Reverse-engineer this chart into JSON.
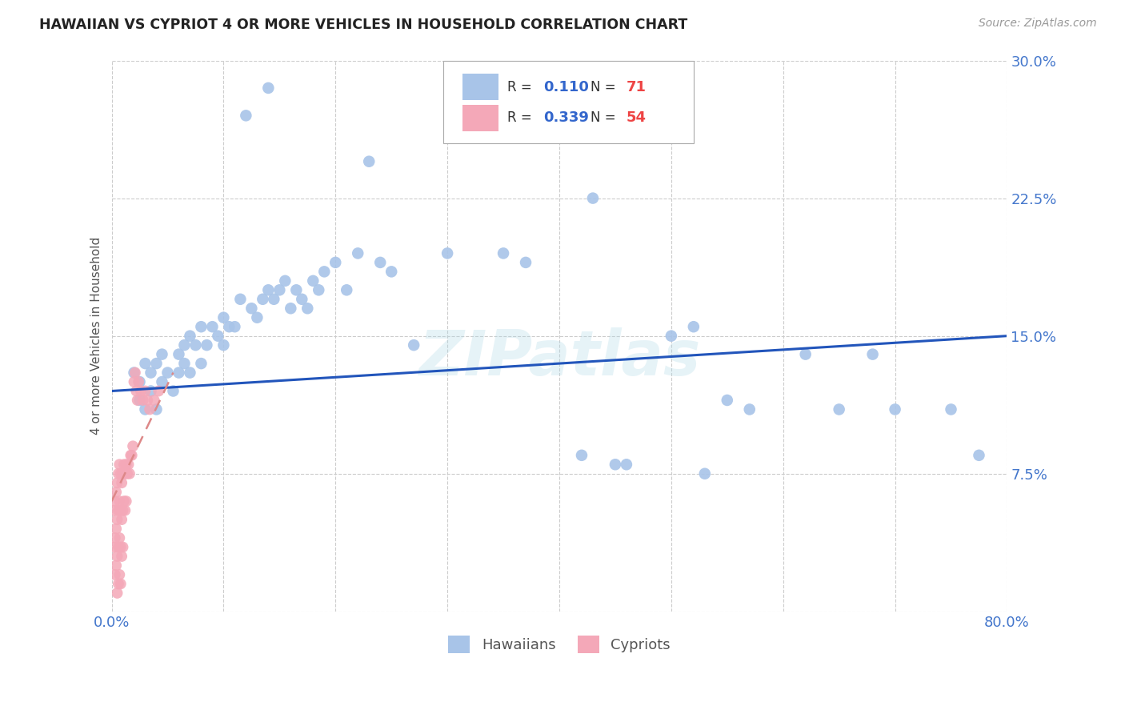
{
  "title": "HAWAIIAN VS CYPRIOT 4 OR MORE VEHICLES IN HOUSEHOLD CORRELATION CHART",
  "source": "Source: ZipAtlas.com",
  "ylabel": "4 or more Vehicles in Household",
  "xlim": [
    0.0,
    0.8
  ],
  "ylim": [
    0.0,
    0.3
  ],
  "hawaiian_color": "#a8c4e8",
  "cypriot_color": "#f4a8b8",
  "trendline_hawaiian_color": "#2255bb",
  "trendline_cypriot_color": "#dd8888",
  "watermark": "ZIPatlas",
  "legend_R1": "0.110",
  "legend_N1": "71",
  "legend_R2": "0.339",
  "legend_N2": "54",
  "hawaiian_x": [
    0.02,
    0.025,
    0.025,
    0.03,
    0.03,
    0.035,
    0.035,
    0.04,
    0.04,
    0.045,
    0.045,
    0.05,
    0.055,
    0.06,
    0.06,
    0.065,
    0.065,
    0.07,
    0.07,
    0.075,
    0.08,
    0.08,
    0.085,
    0.09,
    0.095,
    0.1,
    0.1,
    0.105,
    0.11,
    0.115,
    0.12,
    0.125,
    0.13,
    0.135,
    0.14,
    0.14,
    0.145,
    0.15,
    0.155,
    0.16,
    0.165,
    0.17,
    0.175,
    0.18,
    0.185,
    0.19,
    0.2,
    0.21,
    0.22,
    0.23,
    0.24,
    0.25,
    0.27,
    0.3,
    0.35,
    0.37,
    0.42,
    0.43,
    0.45,
    0.46,
    0.5,
    0.52,
    0.53,
    0.55,
    0.57,
    0.62,
    0.65,
    0.68,
    0.7,
    0.75,
    0.775
  ],
  "hawaiian_y": [
    0.13,
    0.125,
    0.115,
    0.135,
    0.11,
    0.13,
    0.12,
    0.135,
    0.11,
    0.14,
    0.125,
    0.13,
    0.12,
    0.14,
    0.13,
    0.145,
    0.135,
    0.15,
    0.13,
    0.145,
    0.155,
    0.135,
    0.145,
    0.155,
    0.15,
    0.16,
    0.145,
    0.155,
    0.155,
    0.17,
    0.27,
    0.165,
    0.16,
    0.17,
    0.175,
    0.285,
    0.17,
    0.175,
    0.18,
    0.165,
    0.175,
    0.17,
    0.165,
    0.18,
    0.175,
    0.185,
    0.19,
    0.175,
    0.195,
    0.245,
    0.19,
    0.185,
    0.145,
    0.195,
    0.195,
    0.19,
    0.085,
    0.225,
    0.08,
    0.08,
    0.15,
    0.155,
    0.075,
    0.115,
    0.11,
    0.14,
    0.11,
    0.14,
    0.11,
    0.11,
    0.085
  ],
  "cypriot_x": [
    0.002,
    0.002,
    0.003,
    0.003,
    0.003,
    0.004,
    0.004,
    0.004,
    0.005,
    0.005,
    0.005,
    0.005,
    0.006,
    0.006,
    0.006,
    0.006,
    0.007,
    0.007,
    0.007,
    0.007,
    0.008,
    0.008,
    0.008,
    0.008,
    0.009,
    0.009,
    0.009,
    0.01,
    0.01,
    0.01,
    0.011,
    0.011,
    0.012,
    0.012,
    0.013,
    0.013,
    0.014,
    0.015,
    0.016,
    0.017,
    0.018,
    0.019,
    0.02,
    0.021,
    0.022,
    0.023,
    0.024,
    0.026,
    0.028,
    0.03,
    0.032,
    0.034,
    0.038,
    0.042
  ],
  "cypriot_y": [
    0.055,
    0.035,
    0.06,
    0.04,
    0.02,
    0.065,
    0.045,
    0.025,
    0.07,
    0.05,
    0.03,
    0.01,
    0.075,
    0.055,
    0.035,
    0.015,
    0.08,
    0.06,
    0.04,
    0.02,
    0.075,
    0.055,
    0.035,
    0.015,
    0.07,
    0.05,
    0.03,
    0.075,
    0.055,
    0.035,
    0.08,
    0.06,
    0.075,
    0.055,
    0.08,
    0.06,
    0.075,
    0.08,
    0.075,
    0.085,
    0.085,
    0.09,
    0.125,
    0.13,
    0.12,
    0.115,
    0.125,
    0.12,
    0.115,
    0.12,
    0.115,
    0.11,
    0.115,
    0.12
  ],
  "trendline_h_x0": 0.0,
  "trendline_h_y0": 0.12,
  "trendline_h_x1": 0.8,
  "trendline_h_y1": 0.15,
  "trendline_c_x0": 0.0,
  "trendline_c_y0": 0.06,
  "trendline_c_x1": 0.055,
  "trendline_c_y1": 0.13
}
